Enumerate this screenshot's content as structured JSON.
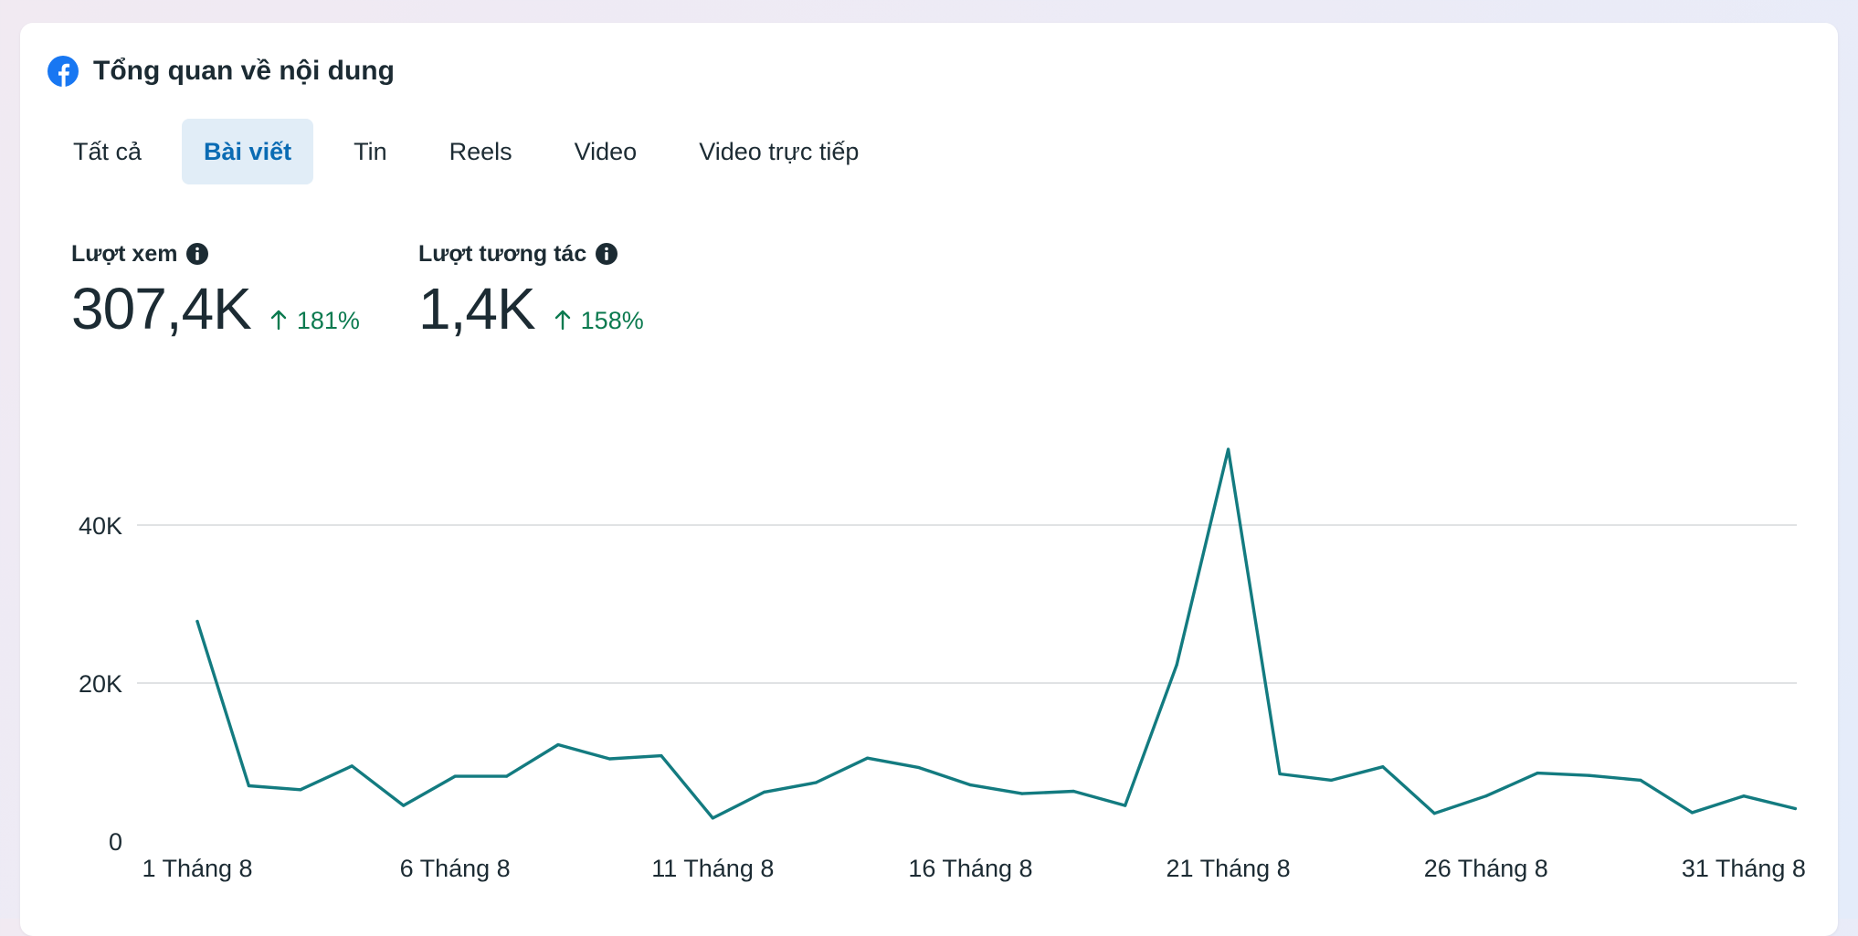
{
  "header": {
    "title": "Tổng quan về nội dung",
    "icon": "facebook-icon",
    "brand_color": "#1877f2"
  },
  "tabs": [
    {
      "label": "Tất cả",
      "active": false
    },
    {
      "label": "Bài viết",
      "active": true
    },
    {
      "label": "Tin",
      "active": false
    },
    {
      "label": "Reels",
      "active": false
    },
    {
      "label": "Video",
      "active": false
    },
    {
      "label": "Video trực tiếp",
      "active": false
    }
  ],
  "metrics": {
    "views": {
      "label": "Lượt xem",
      "value": "307,4K",
      "change": "181%",
      "direction": "up"
    },
    "interactions": {
      "label": "Lượt tương tác",
      "value": "1,4K",
      "change": "158%",
      "direction": "up"
    }
  },
  "colors": {
    "accent": "#0a6bb3",
    "line": "#137b80",
    "positive": "#0b7a4f",
    "grid": "#d5d8dc"
  },
  "chart_data": {
    "type": "line",
    "title": "",
    "xlabel": "",
    "ylabel": "",
    "grid": true,
    "ylim": [
      0,
      40000
    ],
    "y_ticks": [
      {
        "value": 0,
        "label": "0"
      },
      {
        "value": 20000,
        "label": "20K"
      },
      {
        "value": 40000,
        "label": "40K"
      }
    ],
    "x_tick_labels": [
      {
        "day": 1,
        "label": "1 Tháng 8"
      },
      {
        "day": 6,
        "label": "6 Tháng 8"
      },
      {
        "day": 11,
        "label": "11 Tháng 8"
      },
      {
        "day": 16,
        "label": "16 Tháng 8"
      },
      {
        "day": 21,
        "label": "21 Tháng 8"
      },
      {
        "day": 26,
        "label": "26 Tháng 8"
      },
      {
        "day": 31,
        "label": "31 Tháng 8"
      }
    ],
    "series": [
      {
        "values": [
          [
            1,
            27800
          ],
          [
            2,
            7000
          ],
          [
            3,
            6500
          ],
          [
            4,
            9500
          ],
          [
            5,
            4500
          ],
          [
            6,
            8200
          ],
          [
            7,
            8200
          ],
          [
            8,
            12200
          ],
          [
            9,
            10400
          ],
          [
            10,
            10800
          ],
          [
            11,
            2900
          ],
          [
            12,
            6200
          ],
          [
            13,
            7400
          ],
          [
            14,
            10500
          ],
          [
            15,
            9300
          ],
          [
            16,
            7100
          ],
          [
            17,
            6000
          ],
          [
            18,
            6300
          ],
          [
            19,
            4500
          ],
          [
            20,
            22300
          ],
          [
            21,
            49600
          ],
          [
            22,
            8500
          ],
          [
            23,
            7700
          ],
          [
            24,
            9400
          ],
          [
            25,
            3500
          ],
          [
            26,
            5700
          ],
          [
            27,
            8600
          ],
          [
            28,
            8300
          ],
          [
            29,
            7700
          ],
          [
            30,
            3600
          ],
          [
            31,
            5700
          ],
          [
            32,
            4100
          ]
        ]
      }
    ]
  }
}
